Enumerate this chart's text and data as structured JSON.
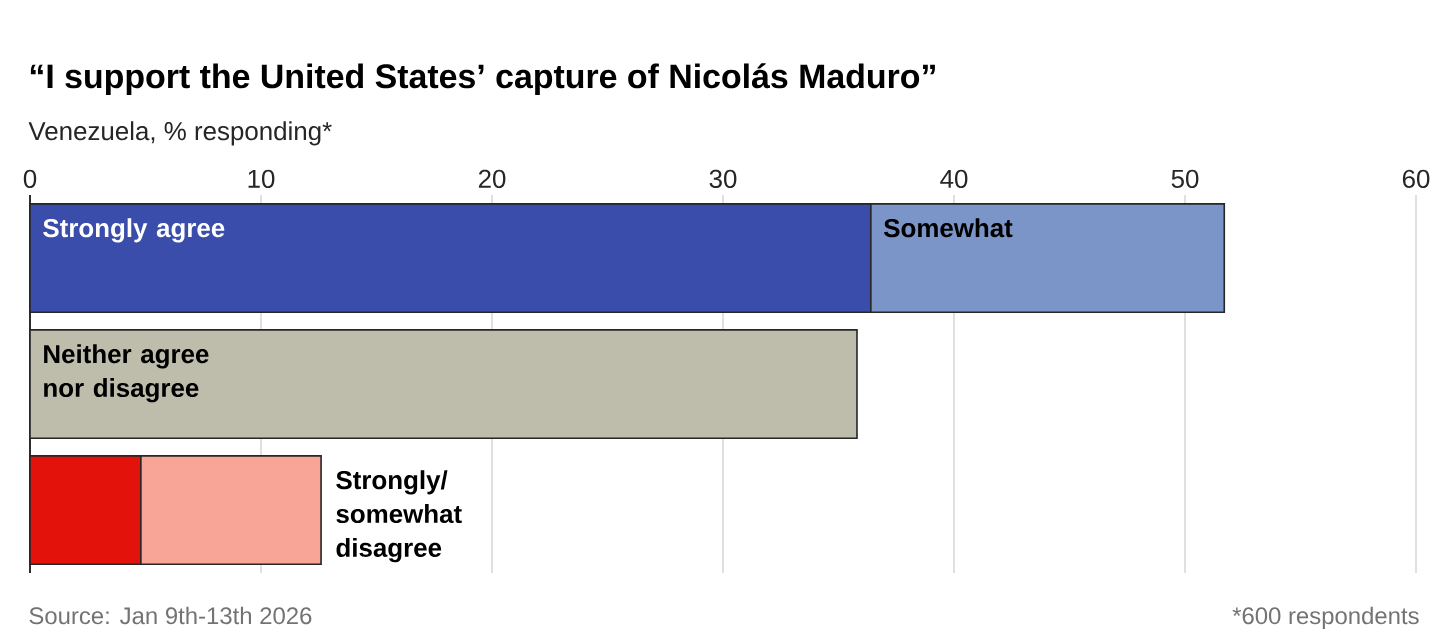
{
  "chart_data": {
    "type": "bar",
    "orientation": "horizontal",
    "stacked": true,
    "title": "“I support the United States’ capture of Nicolás Maduro”",
    "subtitle": "Venezuela, % responding*",
    "categories": [
      null,
      null,
      null
    ],
    "series": [
      {
        "name": "Strongly agree",
        "color": "#3a4dab",
        "values": [
          36.4,
          null,
          null
        ]
      },
      {
        "name": "Somewhat",
        "color": "#7b95c8",
        "values": [
          15.3,
          null,
          null
        ]
      },
      {
        "name": "Neither agree nor disagree",
        "color": "#bebdac",
        "values": [
          null,
          35.8,
          null
        ]
      },
      {
        "color": "#e3120b",
        "values": [
          null,
          null,
          4.8
        ]
      },
      {
        "name": "Strongly/ somewhat disagree",
        "color": "#f8a597",
        "values": [
          null,
          null,
          7.8
        ]
      }
    ],
    "xlim": [
      0,
      60
    ],
    "xticks": [
      0,
      10,
      20,
      30,
      40,
      50,
      60
    ],
    "grid": "x",
    "tick_labels": "x",
    "annotations": [
      "Source: Jan 9th-13th 2026",
      "*600 respondents"
    ]
  }
}
